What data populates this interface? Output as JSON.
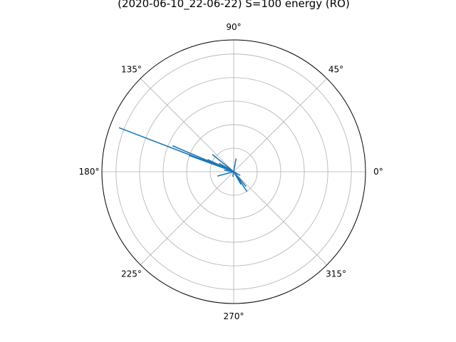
{
  "chart_data": {
    "type": "polar-line",
    "title": "(2020-06-10_22-06-22) S=100 energy (RO)",
    "angle_unit": "degrees",
    "theta_ticks": [
      "0°",
      "45°",
      "90°",
      "135°",
      "180°",
      "225°",
      "270°",
      "315°"
    ],
    "theta_tick_values": [
      0,
      45,
      90,
      135,
      180,
      225,
      270,
      315
    ],
    "r_rings": [
      1,
      2,
      3,
      4,
      5
    ],
    "rlim": [
      0,
      5.6
    ],
    "grid": true,
    "series": [
      {
        "color": "#1f77b4",
        "points": [
          {
            "theta": 0,
            "r": 0
          },
          {
            "theta": 159,
            "r": 5.2
          },
          {
            "theta": 0,
            "r": 0
          },
          {
            "theta": 157,
            "r": 2.8
          },
          {
            "theta": 0,
            "r": 0
          },
          {
            "theta": 160,
            "r": 2.0
          },
          {
            "theta": 0,
            "r": 0
          },
          {
            "theta": 155,
            "r": 1.2
          },
          {
            "theta": 0,
            "r": 0
          },
          {
            "theta": 141,
            "r": 1.15
          },
          {
            "theta": 0,
            "r": 0
          },
          {
            "theta": 150,
            "r": 0.7
          },
          {
            "theta": 0,
            "r": 0
          },
          {
            "theta": 195,
            "r": 0.7
          },
          {
            "theta": 0,
            "r": 0
          },
          {
            "theta": 80,
            "r": 0.55
          },
          {
            "theta": 0,
            "r": 0
          },
          {
            "theta": 170,
            "r": 0.4
          },
          {
            "theta": 0,
            "r": 0
          },
          {
            "theta": 304,
            "r": 1.0
          },
          {
            "theta": 0,
            "r": 0
          },
          {
            "theta": 310,
            "r": 0.8
          },
          {
            "theta": 0,
            "r": 0
          },
          {
            "theta": 300,
            "r": 0.6
          },
          {
            "theta": 0,
            "r": 0
          },
          {
            "theta": 330,
            "r": 0.3
          },
          {
            "theta": 0,
            "r": 0
          },
          {
            "theta": 260,
            "r": 0.2
          },
          {
            "theta": 0,
            "r": 0
          }
        ]
      }
    ]
  }
}
